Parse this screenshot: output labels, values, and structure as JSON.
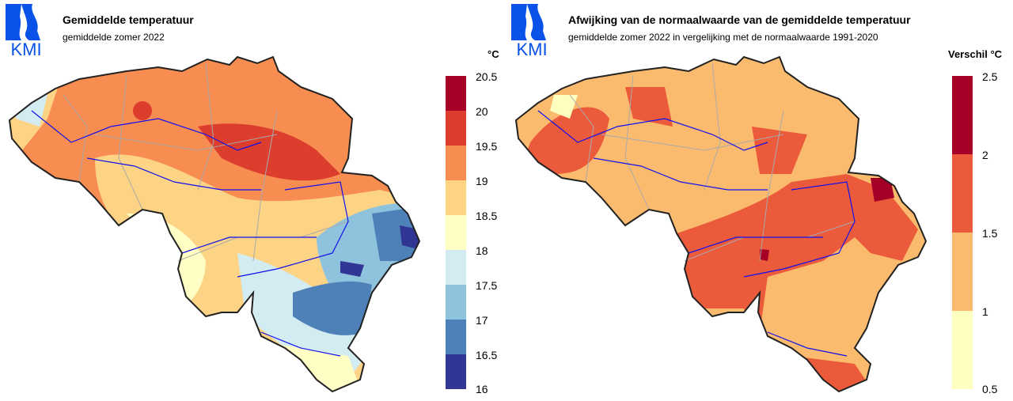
{
  "logo_text": "KMI",
  "left": {
    "title": "Gemiddelde temperatuur",
    "subtitle": "gemiddelde zomer 2022",
    "legend_unit": "°C",
    "legend_labels": [
      "16",
      "16.5",
      "17",
      "17.5",
      "18",
      "18.5",
      "19",
      "19.5",
      "20",
      "20.5"
    ],
    "legend_colors": [
      "#313695",
      "#4f81b9",
      "#8fc2dd",
      "#d3ecf2",
      "#fefec5",
      "#fdd385",
      "#f88d52",
      "#dd3d2d",
      "#a50026"
    ]
  },
  "right": {
    "title": "Afwijking van de normaalwaarde van de gemiddelde temperatuur",
    "subtitle": "gemiddelde zomer 2022 in vergelijking met de normaalwaarde 1991-2020",
    "legend_unit": "Verschil °C",
    "legend_labels": [
      "0.5",
      "1",
      "1.5",
      "2",
      "2.5"
    ],
    "legend_colors": [
      "#fefec0",
      "#fbbb6e",
      "#eb5a3a",
      "#a50026"
    ]
  }
}
